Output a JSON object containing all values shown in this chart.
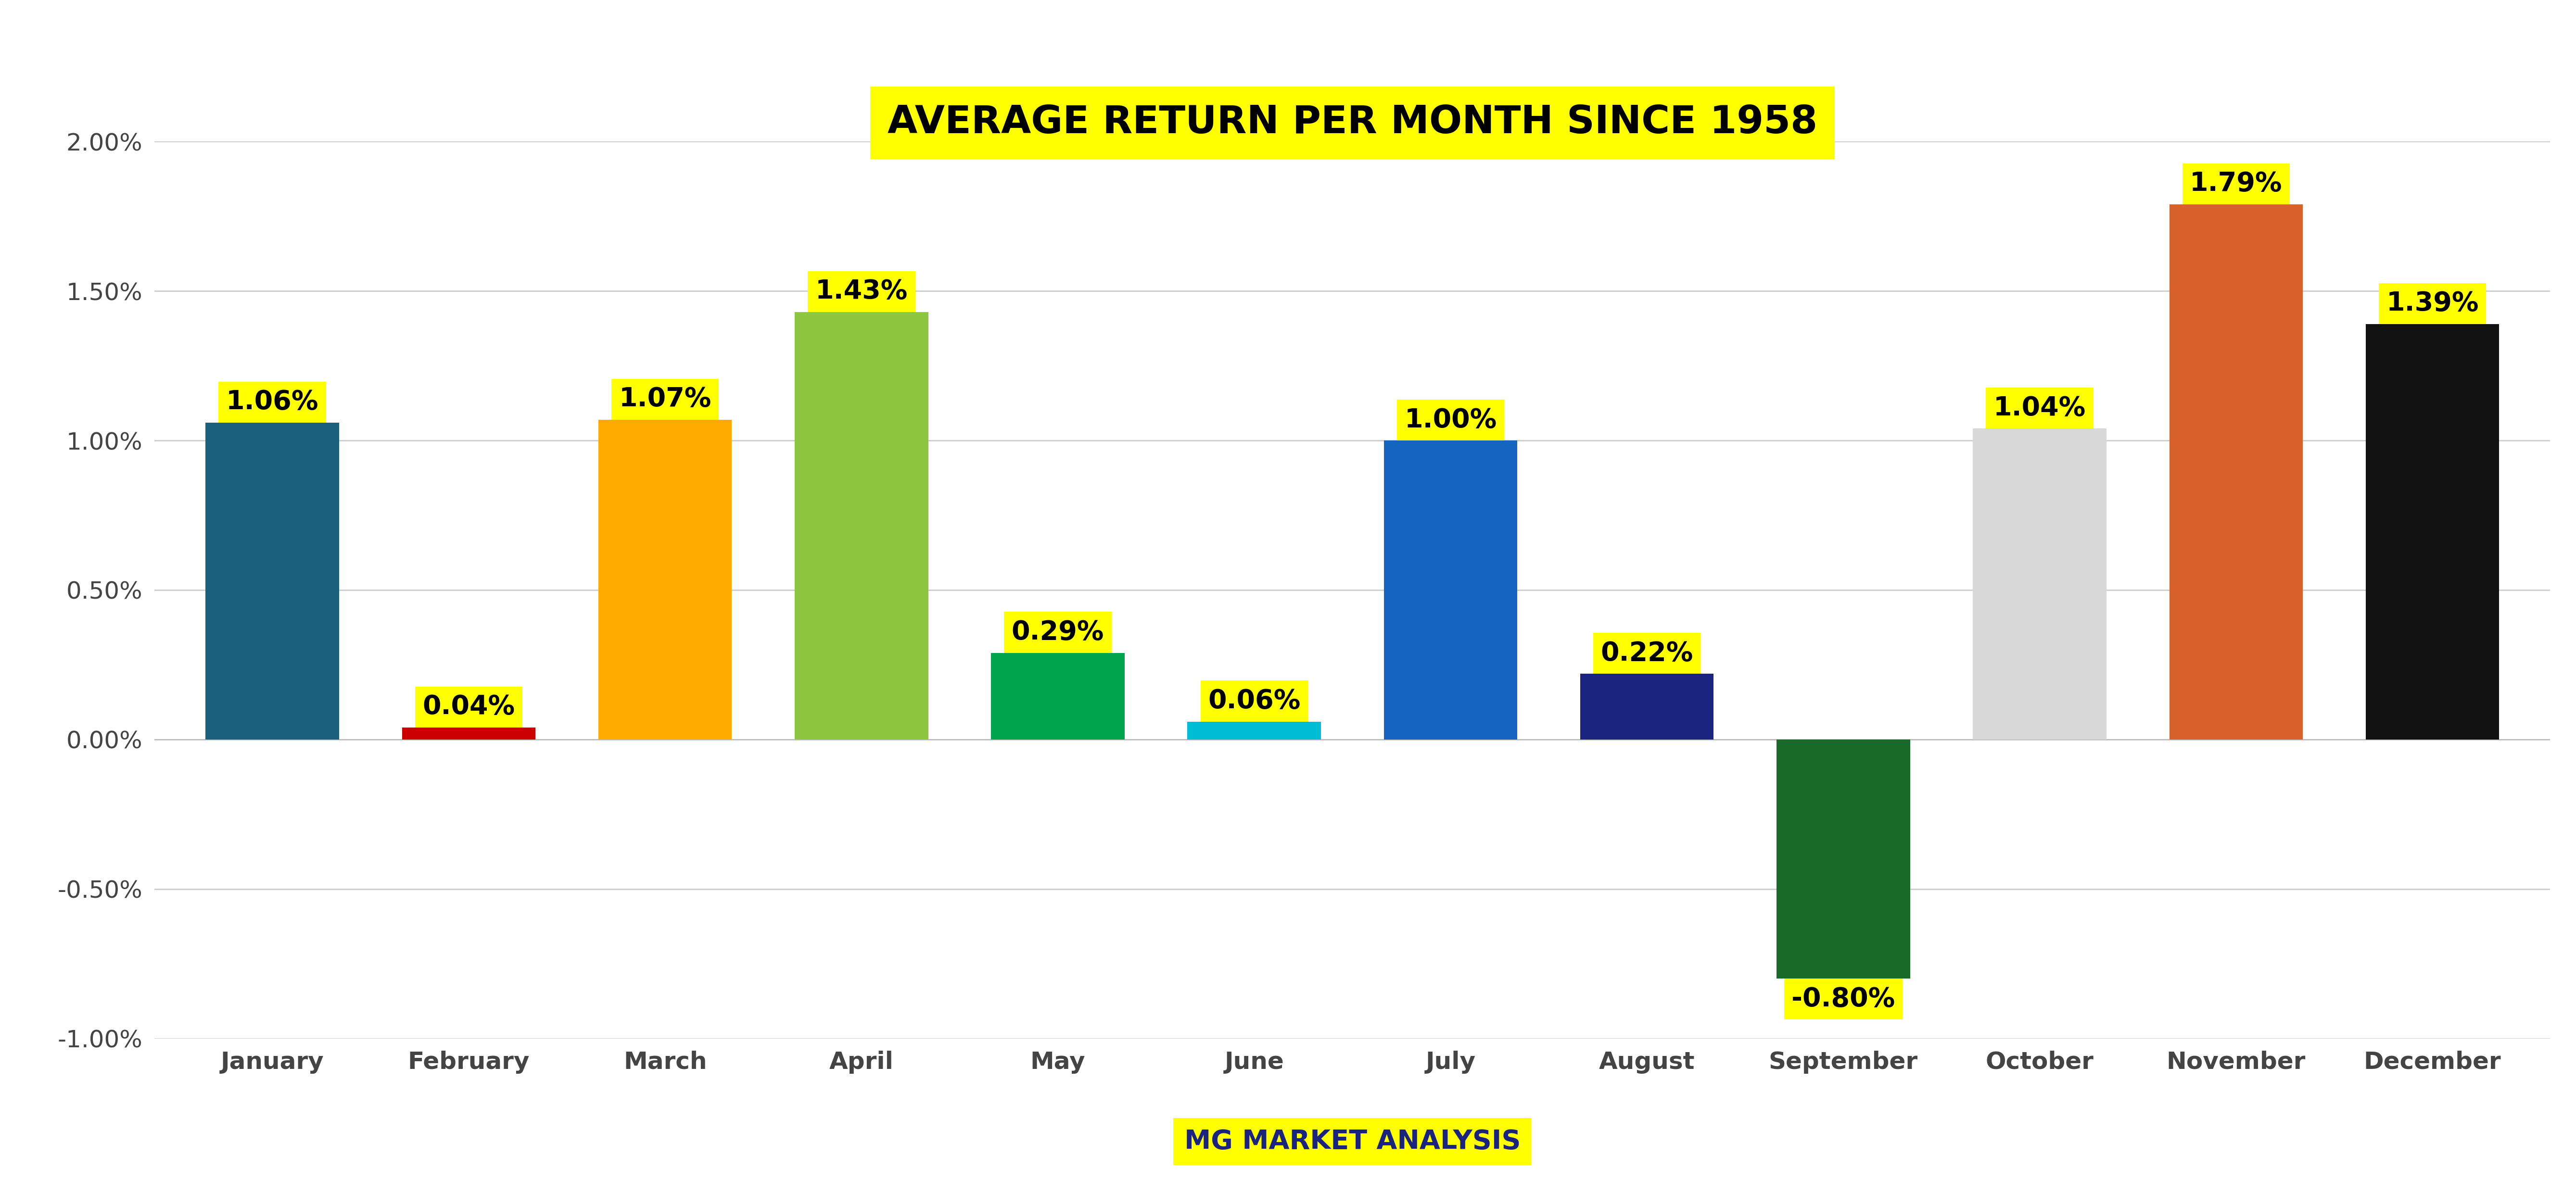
{
  "title": "AVERAGE RETURN PER MONTH SINCE 1958",
  "subtitle": "MG MARKET ANALYSIS",
  "months": [
    "January",
    "February",
    "March",
    "April",
    "May",
    "June",
    "July",
    "August",
    "September",
    "October",
    "November",
    "December"
  ],
  "values": [
    0.0106,
    0.0004,
    0.0107,
    0.0143,
    0.0029,
    0.0006,
    0.01,
    0.0022,
    -0.008,
    0.0104,
    0.0179,
    0.0139
  ],
  "labels": [
    "1.06%",
    "0.04%",
    "1.07%",
    "1.43%",
    "0.29%",
    "0.06%",
    "1.00%",
    "0.22%",
    "-0.80%",
    "1.04%",
    "1.79%",
    "1.39%"
  ],
  "bar_colors": [
    "#1b607c",
    "#cc0000",
    "#ffaa00",
    "#8dc63f",
    "#00a550",
    "#00bcd4",
    "#1565c0",
    "#1a237e",
    "#1a6b2a",
    "#d8d8d8",
    "#d8622a",
    "#111111"
  ],
  "ylim_min": -0.01,
  "ylim_max": 0.02,
  "ytick_vals": [
    -0.01,
    -0.005,
    0.0,
    0.005,
    0.01,
    0.015,
    0.02
  ],
  "ytick_labels": [
    "-1.00%",
    "-0.50%",
    "0.00%",
    "0.50%",
    "1.00%",
    "1.50%",
    "2.00%"
  ],
  "title_fontsize": 58,
  "label_fontsize": 40,
  "tick_fontsize": 36,
  "subtitle_fontsize": 40,
  "background_color": "#ffffff",
  "grid_color": "#cccccc",
  "annotation_bg": "#ffff00",
  "annotation_color": "#000000",
  "title_color": "#000000",
  "title_bg": "#ffff00",
  "subtitle_color": "#1a237e",
  "subtitle_bg": "#ffff00"
}
